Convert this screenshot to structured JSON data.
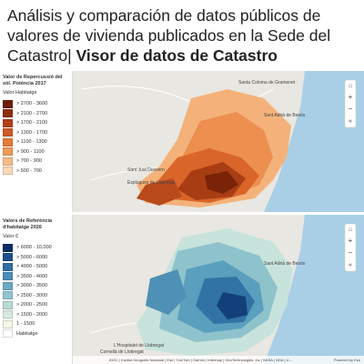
{
  "header": {
    "title": "Análisis y comparación de datos públicos de valores de vivienda publicados en la Sede del Catastro|",
    "title_bold": "Visor de datos de Catastro"
  },
  "legends": [
    {
      "title": "Valor de Repercussió del sòl. Potència 2017",
      "subtitle": "Valor Habitatge",
      "items": [
        {
          "label": "> 2700 - 3600",
          "color": "#6e1e06"
        },
        {
          "label": "> 2100 - 2700",
          "color": "#8f2d0c"
        },
        {
          "label": "> 1700 - 2100",
          "color": "#b23f15"
        },
        {
          "label": "> 1300 - 1700",
          "color": "#cf5a24"
        },
        {
          "label": "> 1100 - 1300",
          "color": "#e57a3a"
        },
        {
          "label": "> 900 - 1100",
          "color": "#f09a58"
        },
        {
          "label": "> 700 - 900",
          "color": "#f6bb85"
        },
        {
          "label": "> 500 - 700",
          "color": "#fad9b6"
        }
      ]
    },
    {
      "title": "Valors de Referència d'habitatge 2026",
      "subtitle": "Valor €",
      "items": [
        {
          "label": "> 6000 - 10,000",
          "color": "#0d2f63"
        },
        {
          "label": "> 5000 - 6000",
          "color": "#1c4f8a"
        },
        {
          "label": "> 4000 - 5000",
          "color": "#2f6fa4"
        },
        {
          "label": "> 3500 - 4000",
          "color": "#4a8db8"
        },
        {
          "label": "> 3000 - 3500",
          "color": "#6aa9c4"
        },
        {
          "label": "> 2500 - 3000",
          "color": "#93c4cd"
        },
        {
          "label": "> 2000 - 2500",
          "color": "#b8dad5"
        },
        {
          "label": "> 1500 - 2000",
          "color": "#d6ebdf"
        },
        {
          "label": "1 - 1500",
          "color": "#f3f8e6"
        },
        {
          "label": "Habitatge",
          "color": "#ffffff"
        }
      ]
    }
  ],
  "map_labels": [
    "Santa Coloma de Gramenet",
    "Sant Adrià de Besòs",
    "Sant Just Desvern",
    "Esplugues de Llobregat",
    "L'Hospitalet de Llobregat",
    "Cornellà de Llobregat"
  ],
  "attribution": "IDGC | Institut Geogràfic Nacional | Esri | TomTom | Garmin | Intermap | GeoTechnologies, Inc | NASA | NGA | U...",
  "powered_by": "Powered by Esri"
}
